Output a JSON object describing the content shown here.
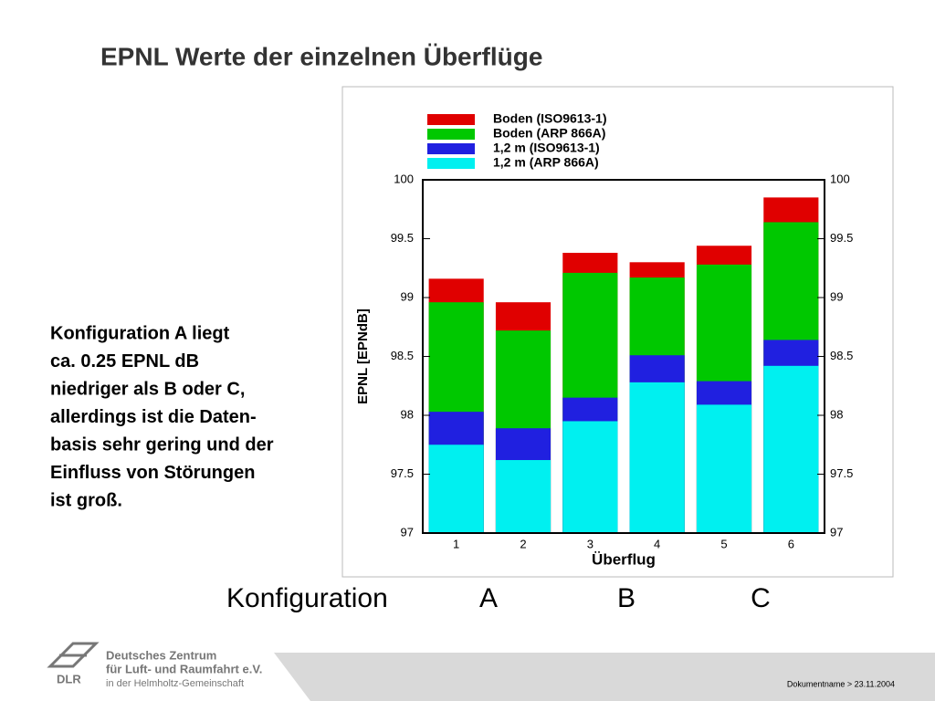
{
  "title": "EPNL Werte der einzelnen Überflüge",
  "note": [
    "Konfiguration A liegt",
    "ca. 0.25 EPNL dB",
    "niedriger als B oder C,",
    "allerdings ist die Daten-",
    "basis sehr gering und der",
    "Einfluss von Störungen",
    "ist groß."
  ],
  "configuration": {
    "label": "Konfiguration",
    "groups": [
      "A",
      "B",
      "C"
    ]
  },
  "logo": {
    "short": "DLR",
    "lines": [
      "Deutsches Zentrum",
      "für Luft- und Raumfahrt e.V.",
      "in der Helmholtz-Gemeinschaft"
    ]
  },
  "footer": "Dokumentname > 23.11.2004",
  "chart_data": {
    "type": "bar",
    "overlap": true,
    "categories": [
      "1",
      "2",
      "3",
      "4",
      "5",
      "6"
    ],
    "x_label": "Überflug",
    "y_label": "EPNL [EPNdB]",
    "series": [
      {
        "name": "Boden (ISO9613-1)",
        "color": "#e00000",
        "values": [
          99.16,
          98.96,
          99.38,
          99.3,
          99.44,
          99.85
        ]
      },
      {
        "name": "Boden (ARP 866A)",
        "color": "#00c800",
        "values": [
          98.96,
          98.72,
          99.21,
          99.17,
          99.28,
          99.64
        ]
      },
      {
        "name": "1,2 m (ISO9613-1)",
        "color": "#2020e0",
        "values": [
          98.03,
          97.89,
          98.15,
          98.51,
          98.29,
          98.64
        ]
      },
      {
        "name": "1,2 m (ARP 866A)",
        "color": "#00f0f0",
        "values": [
          97.75,
          97.62,
          97.95,
          98.28,
          98.09,
          98.42
        ]
      }
    ],
    "ylim": [
      97,
      100
    ],
    "yticks": [
      97,
      97.5,
      98,
      98.5,
      99,
      99.5,
      100
    ],
    "right_axis_labels": true
  }
}
